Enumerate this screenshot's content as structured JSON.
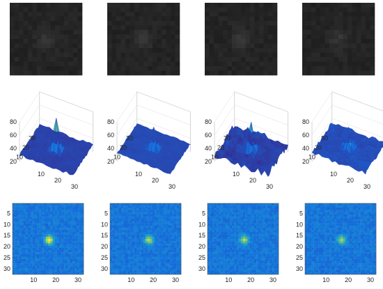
{
  "chart_data": [
    {
      "type": "image-row",
      "rows": 4,
      "row": 1,
      "panels": [
        {
          "variant": "grayscale",
          "peak": "low",
          "background": "#1f1f1f"
        },
        {
          "variant": "grayscale",
          "peak": "low",
          "background": "#1e1e1e"
        },
        {
          "variant": "grayscale",
          "peak": "low",
          "background": "#232323"
        },
        {
          "variant": "grayscale",
          "peak": "low",
          "background": "#222222"
        }
      ]
    },
    {
      "type": "surface",
      "row": 2,
      "zlim": [
        20,
        80
      ],
      "z_ticks": [
        "20",
        "40",
        "60",
        "80"
      ],
      "x_ticks": [
        "10",
        "20",
        "30"
      ],
      "y_ticks": [
        "10",
        "20",
        "30"
      ],
      "colormap": "parula",
      "panels": [
        {
          "peak_z": 78,
          "base_z": 30,
          "noise": 0.35
        },
        {
          "peak_z": 66,
          "base_z": 32,
          "noise": 0.25
        },
        {
          "peak_z": 72,
          "base_z": 30,
          "noise": 0.9
        },
        {
          "peak_z": 62,
          "base_z": 33,
          "noise": 0.45
        }
      ]
    },
    {
      "type": "heatmap",
      "row": 3,
      "grid": [
        32,
        32
      ],
      "colormap": "parula",
      "y_ticks": [
        "5",
        "10",
        "15",
        "20",
        "25",
        "30"
      ],
      "x_ticks": [
        "10",
        "20",
        "30"
      ],
      "panels": [
        {
          "peak": [
            16,
            16
          ],
          "intensity": 1.0
        },
        {
          "peak": [
            17,
            16
          ],
          "intensity": 0.8
        },
        {
          "peak": [
            16,
            16
          ],
          "intensity": 0.75
        },
        {
          "peak": [
            16,
            16
          ],
          "intensity": 0.7
        }
      ]
    }
  ],
  "colors": {
    "parula_low": "#3a2fa0",
    "parula_mid": "#1e8ad6",
    "parula_high": "#f9e23a",
    "mesh_blue": "#3b4fe0"
  }
}
